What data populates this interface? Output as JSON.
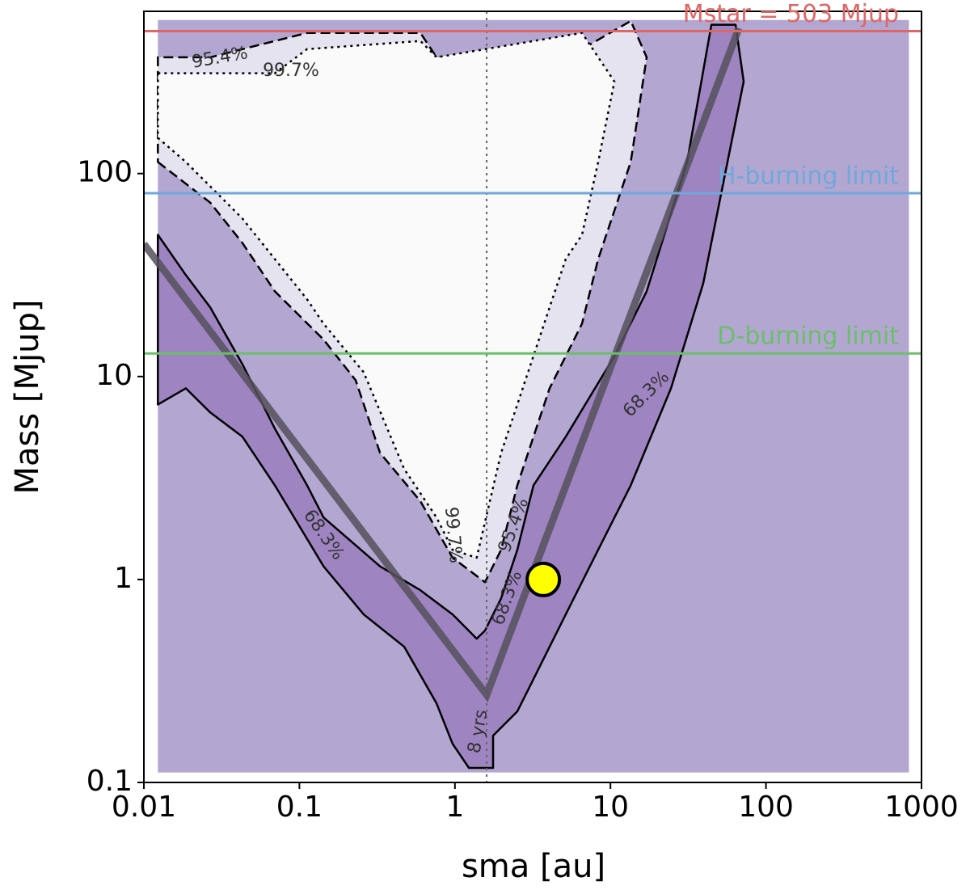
{
  "chart_data": {
    "type": "contour",
    "xlabel": "sma [au]",
    "ylabel": "Mass [Mjup]",
    "xscale": "log",
    "yscale": "log",
    "xlim": [
      0.01,
      1000
    ],
    "ylim": [
      0.1,
      630
    ],
    "xticks": [
      0.01,
      0.1,
      1,
      10,
      100,
      1000
    ],
    "yticks": [
      0.1,
      1,
      10,
      100
    ],
    "extent": {
      "x": [
        0.0123,
        830
      ],
      "y": [
        0.112,
        571
      ],
      "color": "#b3a6d1"
    },
    "contours": [
      {
        "label": "68.3%",
        "color": "#9f84c2",
        "linestyle": "solid",
        "x": [
          0.0123,
          0.0186,
          0.0267,
          0.043,
          0.0695,
          0.112,
          0.143,
          0.33,
          0.6,
          0.966,
          1.38,
          1.56,
          1.98,
          2.52,
          3.2,
          5.16,
          10.6,
          17.1,
          31.1,
          44.6,
          63.8,
          71.9,
          56.6,
          39.5,
          24.5,
          13.5,
          8.34,
          5.16,
          3.2,
          2.52,
          1.76,
          1.76,
          1.23,
          0.966,
          0.762,
          0.472,
          0.259,
          0.143,
          0.0695,
          0.043,
          0.0267,
          0.0186,
          0.0123
        ],
        "y": [
          49.9,
          31.6,
          21.9,
          11.5,
          5.54,
          2.91,
          2.02,
          1.16,
          0.885,
          0.673,
          0.511,
          0.56,
          0.807,
          1.4,
          2.91,
          5.05,
          12.6,
          26.3,
          114,
          541,
          541,
          284,
          114,
          28.8,
          8.75,
          2.91,
          1.4,
          0.673,
          0.323,
          0.224,
          0.17,
          0.118,
          0.118,
          0.155,
          0.245,
          0.466,
          0.673,
          1.16,
          2.91,
          5.05,
          6.65,
          8.75,
          7.28
        ]
      },
      {
        "label": "95.4%",
        "color": "#e6e3f0",
        "linestyle": "dashed",
        "x": [
          0.0123,
          0.0267,
          0.043,
          0.0695,
          0.143,
          0.23,
          0.33,
          0.6,
          0.966,
          1.56,
          1.98,
          2.52,
          4.06,
          6.56,
          8.34,
          13.5,
          17.1,
          13.5,
          6.56,
          1.56,
          0.762,
          0.6,
          0.112,
          0.043,
          0.0267,
          0.0123
        ],
        "y": [
          114,
          71.9,
          45.5,
          26.3,
          15.2,
          9.59,
          4.2,
          2.43,
          1.28,
          0.97,
          1.4,
          2.91,
          8.75,
          18.2,
          37.9,
          114,
          374,
          565,
          410,
          374,
          374,
          493,
          493,
          410,
          374,
          374
        ]
      },
      {
        "label": "99.7%",
        "color": "#fafafa",
        "linestyle": "dotted",
        "x": [
          0.0123,
          0.0695,
          0.112,
          0.6,
          0.762,
          6.56,
          10.6,
          8.34,
          6.56,
          5.16,
          4.06,
          2.52,
          1.98,
          1.38,
          0.966,
          0.762,
          0.472,
          0.259,
          0.143,
          0.112,
          0.0695,
          0.043,
          0.0186,
          0.0123
        ],
        "y": [
          312,
          312,
          410,
          450,
          374,
          493,
          284,
          114,
          49.9,
          37.9,
          21.9,
          7.28,
          4.2,
          1.28,
          1.4,
          2.02,
          3.5,
          10.5,
          18.2,
          24.0,
          37.9,
          60,
          114,
          150
        ]
      }
    ],
    "lines": [
      {
        "color": "#55505c",
        "x": [
          0.01,
          1.6,
          67
        ],
        "y": [
          45,
          0.27,
          520
        ]
      }
    ],
    "vline": {
      "x": 1.6,
      "color": "#666666"
    },
    "hlines": [
      {
        "label": "Mstar = 503 Mjup",
        "value": 503,
        "color": "#e06666"
      },
      {
        "label": "H-burning limit",
        "value": 80,
        "color": "#6fa8dc"
      },
      {
        "label": "D-burning limit",
        "value": 13,
        "color": "#6abf69"
      }
    ],
    "point": {
      "x": 3.7,
      "y": 1,
      "color": "#ffff00"
    },
    "annotations": [
      "95.4%",
      "99.7%",
      "68.3%",
      "99.7%",
      "95.4%",
      "68.3%",
      "68.3%",
      "8 yrs"
    ]
  }
}
